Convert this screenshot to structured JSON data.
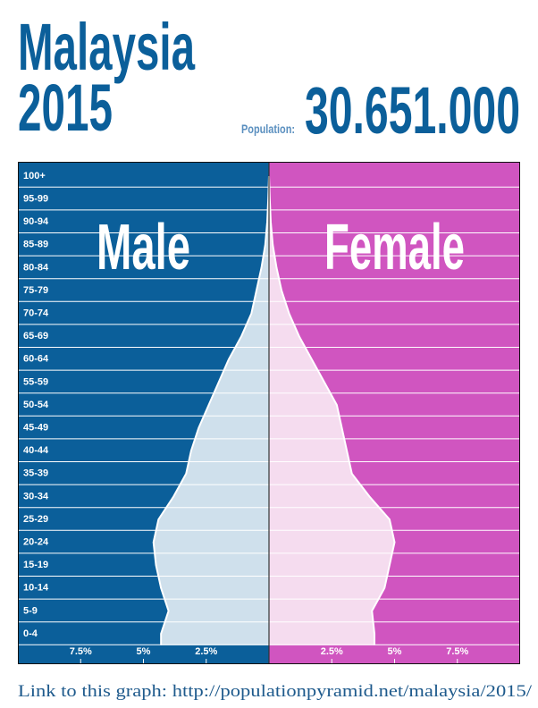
{
  "chart_data": {
    "type": "population_pyramid",
    "title": "Malaysia",
    "subtitle": "2015",
    "population_label": "Population:",
    "population": "30.651.000",
    "categories": [
      "100+",
      "95-99",
      "90-94",
      "85-89",
      "80-84",
      "75-79",
      "70-74",
      "65-69",
      "60-64",
      "55-59",
      "50-54",
      "45-49",
      "40-44",
      "35-39",
      "30-34",
      "25-29",
      "20-24",
      "15-19",
      "10-14",
      "5-9",
      "0-4"
    ],
    "series": [
      {
        "name": "Male",
        "color": "#0b5f9a",
        "fill": "#cfe0ec",
        "values": [
          0.0,
          0.03,
          0.07,
          0.15,
          0.3,
          0.5,
          0.7,
          1.1,
          1.6,
          2.0,
          2.4,
          2.8,
          3.1,
          3.3,
          3.8,
          4.4,
          4.6,
          4.5,
          4.3,
          4.0,
          4.3
        ]
      },
      {
        "name": "Female",
        "color": "#d055c0",
        "fill": "#f5dcef",
        "values": [
          0.0,
          0.03,
          0.07,
          0.15,
          0.3,
          0.5,
          0.8,
          1.2,
          1.7,
          2.2,
          2.7,
          2.9,
          3.1,
          3.3,
          4.0,
          4.8,
          5.0,
          4.8,
          4.6,
          4.1,
          4.2
        ]
      }
    ],
    "xlim": [
      0,
      10
    ],
    "xticks": [
      {
        "value": 2.5,
        "label": "2.5%"
      },
      {
        "value": 5,
        "label": "5%"
      },
      {
        "value": 7.5,
        "label": "7.5%"
      }
    ],
    "link": "Link to this graph: http://populationpyramid.net/malaysia/2015/"
  }
}
